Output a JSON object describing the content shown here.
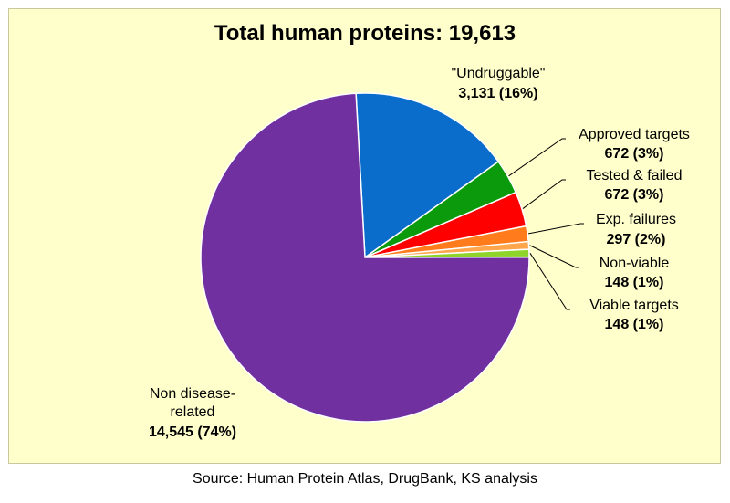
{
  "chart_data": {
    "type": "pie",
    "title": "Total human proteins: 19,613",
    "slices": [
      {
        "label": "\"Undruggable\"",
        "value_text": "3,131 (16%)",
        "value": 3131,
        "color": "#0a6ccb"
      },
      {
        "label": "Approved targets",
        "value_text": "672 (3%)",
        "value": 672,
        "color": "#0b9a0b"
      },
      {
        "label": "Tested & failed",
        "value_text": "672 (3%)",
        "value": 672,
        "color": "#ff0000"
      },
      {
        "label": "Exp. failures",
        "value_text": "297 (2%)",
        "value": 297,
        "color": "#ff7b1c"
      },
      {
        "label": "Non-viable",
        "value_text": "148 (1%)",
        "value": 148,
        "color": "#ffa64d"
      },
      {
        "label": "Viable targets",
        "value_text": "148 (1%)",
        "value": 148,
        "color": "#8fd42a"
      },
      {
        "label_lines": [
          "Non disease-",
          "related"
        ],
        "value_text": "14,545 (74%)",
        "value": 14545,
        "color": "#7030a0"
      }
    ]
  },
  "source": "Source: Human  Protein Atlas, DrugBank, KS analysis"
}
